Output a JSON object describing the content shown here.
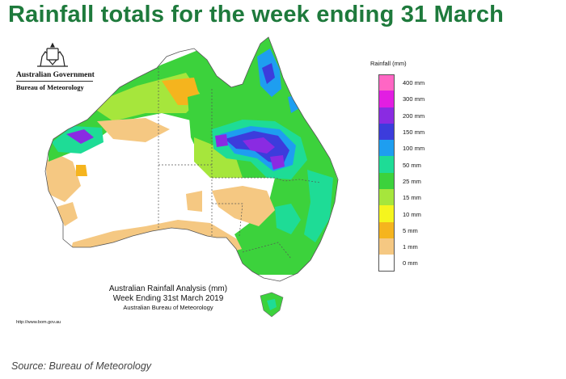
{
  "title": "Rainfall totals for the week ending 31 March",
  "branding": {
    "crest_icon": "australian-coat-of-arms-icon",
    "government": "Australian Government",
    "bureau": "Bureau of Meteorology"
  },
  "legend": {
    "title": "Rainfall (mm)",
    "items": [
      {
        "label": "400 mm",
        "color": "#ff66c4"
      },
      {
        "label": "300 mm",
        "color": "#e21ee2"
      },
      {
        "label": "200 mm",
        "color": "#8a2be2"
      },
      {
        "label": "150 mm",
        "color": "#3c3cdc"
      },
      {
        "label": "100 mm",
        "color": "#1e9ef0"
      },
      {
        "label": "50 mm",
        "color": "#1edc96"
      },
      {
        "label": "25 mm",
        "color": "#3cd23c"
      },
      {
        "label": "15 mm",
        "color": "#a6e63c"
      },
      {
        "label": "10 mm",
        "color": "#f5f51e"
      },
      {
        "label": "5 mm",
        "color": "#f5b41e"
      },
      {
        "label": "1 mm",
        "color": "#f5c882"
      },
      {
        "label": "0 mm",
        "color": "#ffffff"
      }
    ]
  },
  "analysis": {
    "title": "Australian Rainfall Analysis (mm)",
    "subtitle": "Week Ending 31st March 2019",
    "organisation": "Australian Bureau of Meteorology"
  },
  "url": "http://www.bom.gov.au",
  "source": "Source: Bureau of Meteorology"
}
